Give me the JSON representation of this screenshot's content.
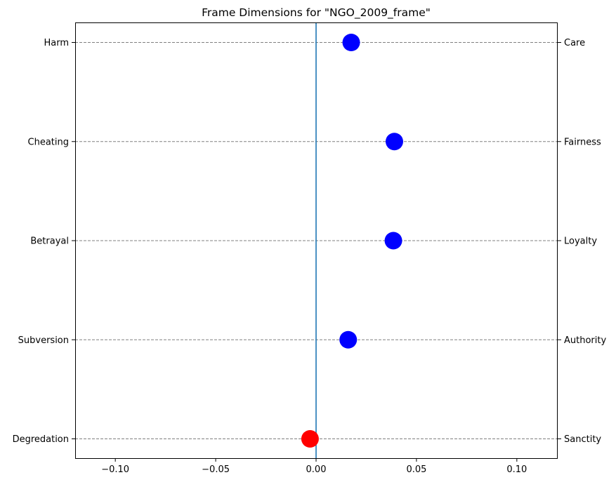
{
  "chart_data": {
    "type": "scatter",
    "title": "Frame Dimensions for \"NGO_2009_frame\"",
    "xlim": [
      -0.12,
      0.12
    ],
    "x_ticks": [
      -0.1,
      -0.05,
      0.0,
      0.05,
      0.1
    ],
    "x_tick_labels": [
      "−0.10",
      "−0.05",
      "0.00",
      "0.05",
      "0.10"
    ],
    "left_labels": [
      "Harm",
      "Cheating",
      "Betrayal",
      "Subversion",
      "Degredation"
    ],
    "right_labels": [
      "Care",
      "Fairness",
      "Loyalty",
      "Authority",
      "Sanctity"
    ],
    "points": [
      {
        "value": 0.0175,
        "color": "#0000ff"
      },
      {
        "value": 0.039,
        "color": "#0000ff"
      },
      {
        "value": 0.0385,
        "color": "#0000ff"
      },
      {
        "value": 0.016,
        "color": "#0000ff"
      },
      {
        "value": -0.003,
        "color": "#ff0000"
      }
    ],
    "zero_line_color": "#1f77b4",
    "gridlines": "horizontal dashed",
    "grid_color": "#808080"
  }
}
